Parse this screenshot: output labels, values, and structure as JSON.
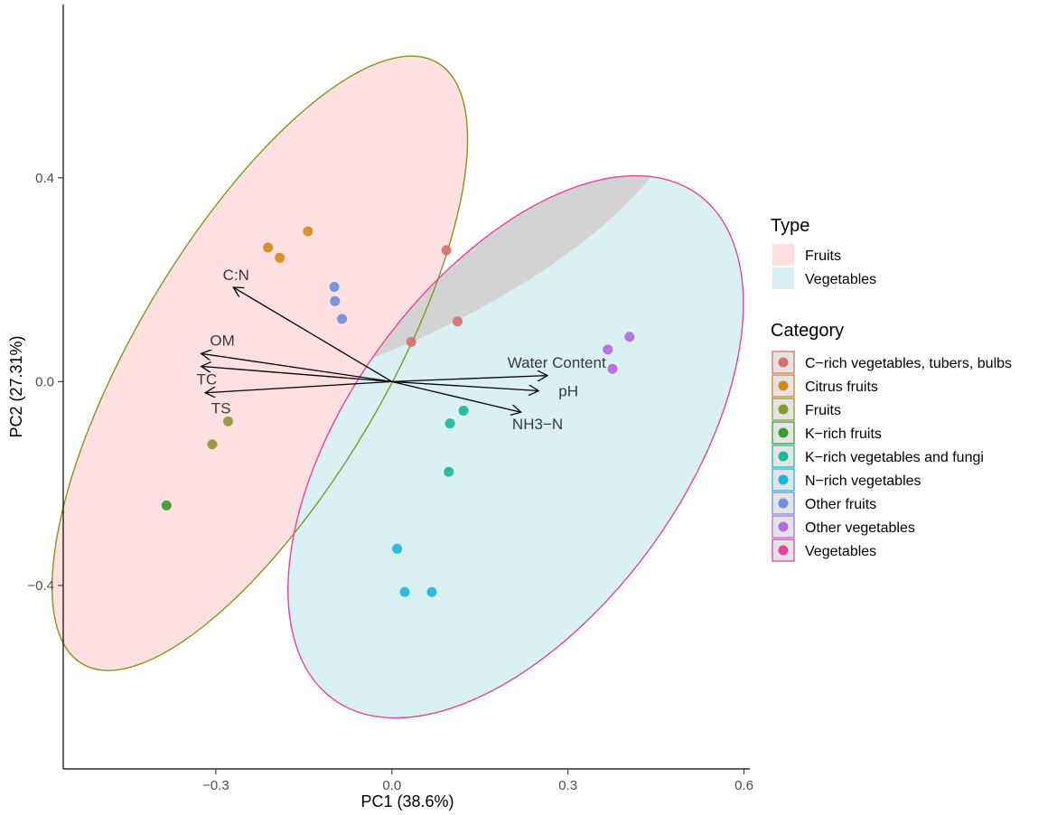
{
  "chart_data": {
    "type": "scatter",
    "subtype": "PCA biplot",
    "xlabel": "PC1 (38.6%)",
    "ylabel": "PC2 (27.31%)",
    "xlim": [
      -0.56,
      0.61
    ],
    "ylim": [
      -0.76,
      0.74
    ],
    "x_ticks": [
      -0.3,
      0.0,
      0.3,
      0.6
    ],
    "x_tick_labels": [
      "−0.3",
      "0.0",
      "0.3",
      "0.6"
    ],
    "y_ticks": [
      -0.4,
      0.0,
      0.4
    ],
    "y_tick_labels": [
      "−0.4",
      "0.0",
      "0.4"
    ],
    "grid": false,
    "type_legend": {
      "title": "Type",
      "entries": [
        {
          "name": "Fruits",
          "fill": "#fde0df",
          "stroke": "#7f9a1a"
        },
        {
          "name": "Vegetables",
          "fill": "#d9f1f3",
          "stroke": "#e8419f"
        }
      ]
    },
    "ellipses": [
      {
        "type": "Fruits",
        "cx": -0.225,
        "cy": 0.036,
        "rx": 0.213,
        "ry": 0.685,
        "rotation_deg": 30.6,
        "fill": "#fde0df",
        "stroke": "#7f9a1a"
      },
      {
        "type": "Vegetables",
        "cx": 0.211,
        "cy": -0.128,
        "rx": 0.287,
        "ry": 0.611,
        "rotation_deg": 35.8,
        "fill": "#d9f1f3",
        "stroke": "#e8419f"
      }
    ],
    "category_legend": {
      "title": "Category",
      "entries": [
        {
          "name": "C−rich vegetables, tubers, bulbs",
          "color": "#d9706d"
        },
        {
          "name": "Citrus fruits",
          "color": "#d58a1e"
        },
        {
          "name": "Fruits",
          "color": "#8a9a2f"
        },
        {
          "name": "K−rich fruits",
          "color": "#3a9a34"
        },
        {
          "name": "K−rich vegetables and fungi",
          "color": "#1ab99a"
        },
        {
          "name": "N−rich vegetables",
          "color": "#1cb8d9"
        },
        {
          "name": "Other fruits",
          "color": "#6c8fdf"
        },
        {
          "name": "Other vegetables",
          "color": "#b36ae2"
        },
        {
          "name": "Vegetables",
          "color": "#e8419f"
        }
      ]
    },
    "points": [
      {
        "category": "C−rich vegetables, tubers, bulbs",
        "x": 0.093,
        "y": 0.258
      },
      {
        "category": "C−rich vegetables, tubers, bulbs",
        "x": 0.112,
        "y": 0.118
      },
      {
        "category": "C−rich vegetables, tubers, bulbs",
        "x": 0.033,
        "y": 0.078
      },
      {
        "category": "Citrus fruits",
        "x": -0.143,
        "y": 0.295
      },
      {
        "category": "Citrus fruits",
        "x": -0.211,
        "y": 0.263
      },
      {
        "category": "Citrus fruits",
        "x": -0.191,
        "y": 0.243
      },
      {
        "category": "Fruits",
        "x": -0.279,
        "y": -0.078
      },
      {
        "category": "Fruits",
        "x": -0.306,
        "y": -0.123
      },
      {
        "category": "K−rich fruits",
        "x": -0.384,
        "y": -0.243
      },
      {
        "category": "K−rich vegetables and fungi",
        "x": 0.122,
        "y": -0.057
      },
      {
        "category": "K−rich vegetables and fungi",
        "x": 0.099,
        "y": -0.082
      },
      {
        "category": "K−rich vegetables and fungi",
        "x": 0.097,
        "y": -0.177
      },
      {
        "category": "N−rich vegetables",
        "x": 0.009,
        "y": -0.328
      },
      {
        "category": "N−rich vegetables",
        "x": 0.022,
        "y": -0.413
      },
      {
        "category": "N−rich vegetables",
        "x": 0.068,
        "y": -0.413
      },
      {
        "category": "Other fruits",
        "x": -0.098,
        "y": 0.186
      },
      {
        "category": "Other fruits",
        "x": -0.097,
        "y": 0.158
      },
      {
        "category": "Other fruits",
        "x": -0.085,
        "y": 0.123
      },
      {
        "category": "Other vegetables",
        "x": 0.368,
        "y": 0.063
      },
      {
        "category": "Other vegetables",
        "x": 0.405,
        "y": 0.088
      },
      {
        "category": "Other vegetables",
        "x": 0.376,
        "y": 0.025
      }
    ],
    "loadings": [
      {
        "label": "C:N",
        "x": -0.27,
        "y": 0.185,
        "label_x": -0.288,
        "label_y": 0.21
      },
      {
        "label": "OM",
        "x": -0.325,
        "y": 0.055,
        "label_x": -0.31,
        "label_y": 0.081
      },
      {
        "label": "TC",
        "x": -0.325,
        "y": 0.03,
        "label_x": -0.333,
        "label_y": 0.005
      },
      {
        "label": "TS",
        "x": -0.318,
        "y": -0.022,
        "label_x": -0.308,
        "label_y": -0.052
      },
      {
        "label": "Water Content",
        "x": 0.265,
        "y": 0.012,
        "label_x": 0.197,
        "label_y": 0.038
      },
      {
        "label": "pH",
        "x": 0.25,
        "y": -0.018,
        "label_x": 0.284,
        "label_y": -0.018
      },
      {
        "label": "NH3−N",
        "x": 0.22,
        "y": -0.06,
        "label_x": 0.205,
        "label_y": -0.083
      }
    ]
  }
}
